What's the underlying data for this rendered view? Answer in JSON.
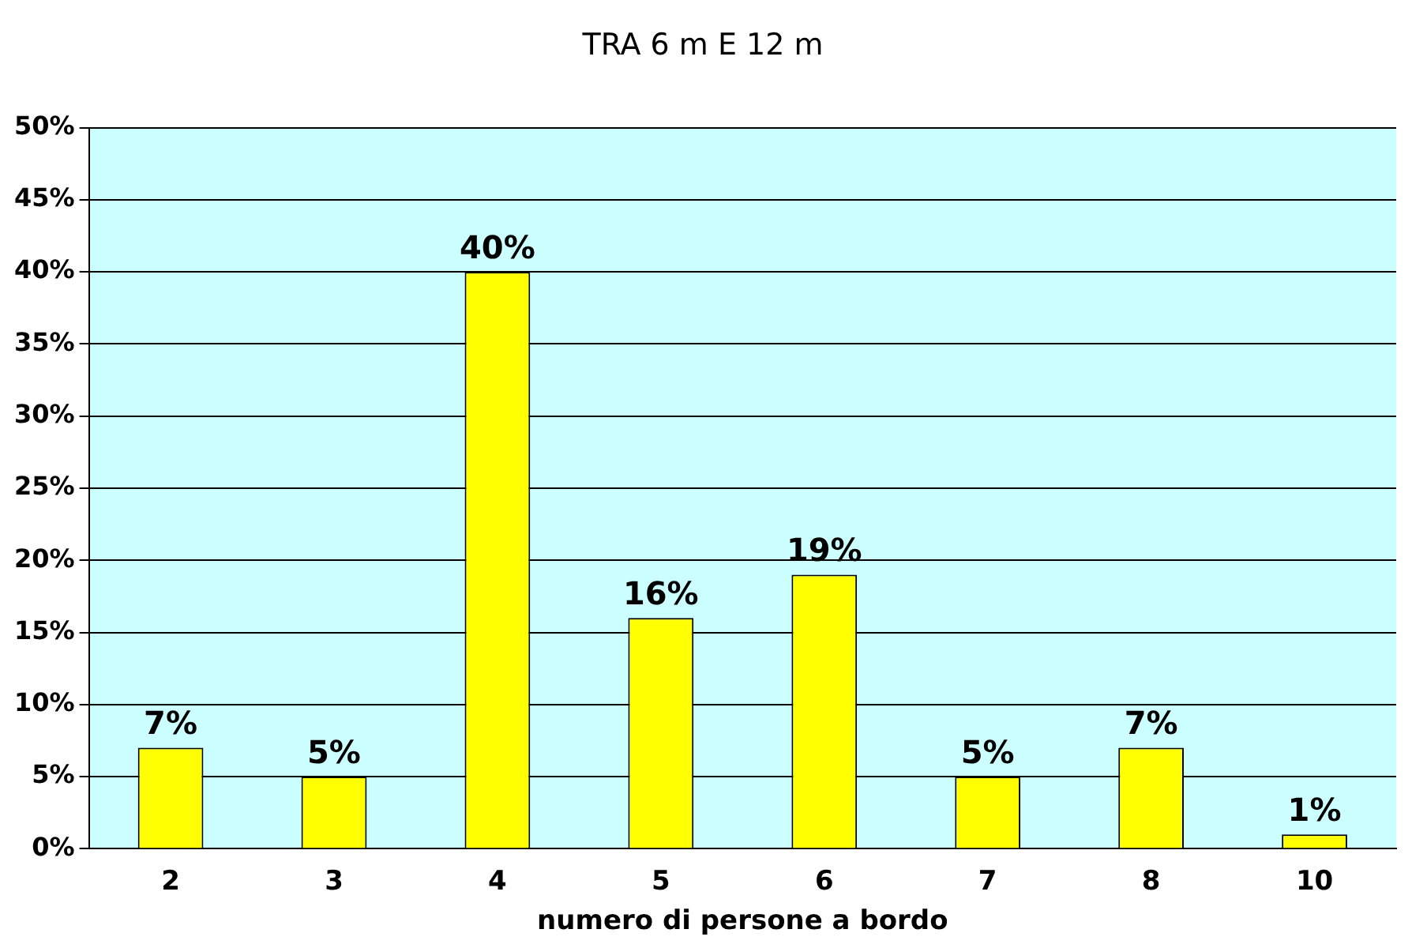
{
  "chart_data": {
    "type": "bar",
    "title": "TRA 6 m E 12 m",
    "xlabel": "numero di persone a bordo",
    "categories": [
      "2",
      "3",
      "4",
      "5",
      "6",
      "7",
      "8",
      "10"
    ],
    "values": [
      7,
      5,
      40,
      16,
      19,
      5,
      7,
      1
    ],
    "value_labels": [
      "7%",
      "5%",
      "40%",
      "16%",
      "19%",
      "5%",
      "7%",
      "1%"
    ],
    "color": "#ffff00",
    "ylim": [
      0,
      50
    ],
    "yticks": [
      {
        "value": 0,
        "label": "0%"
      },
      {
        "value": 5,
        "label": "5%"
      },
      {
        "value": 10,
        "label": "10%"
      },
      {
        "value": 15,
        "label": "15%"
      },
      {
        "value": 20,
        "label": "20%"
      },
      {
        "value": 25,
        "label": "25%"
      },
      {
        "value": 30,
        "label": "30%"
      },
      {
        "value": 35,
        "label": "35%"
      },
      {
        "value": 40,
        "label": "40%"
      },
      {
        "value": 45,
        "label": "45%"
      },
      {
        "value": 50,
        "label": "50%"
      }
    ],
    "grid": "y"
  }
}
